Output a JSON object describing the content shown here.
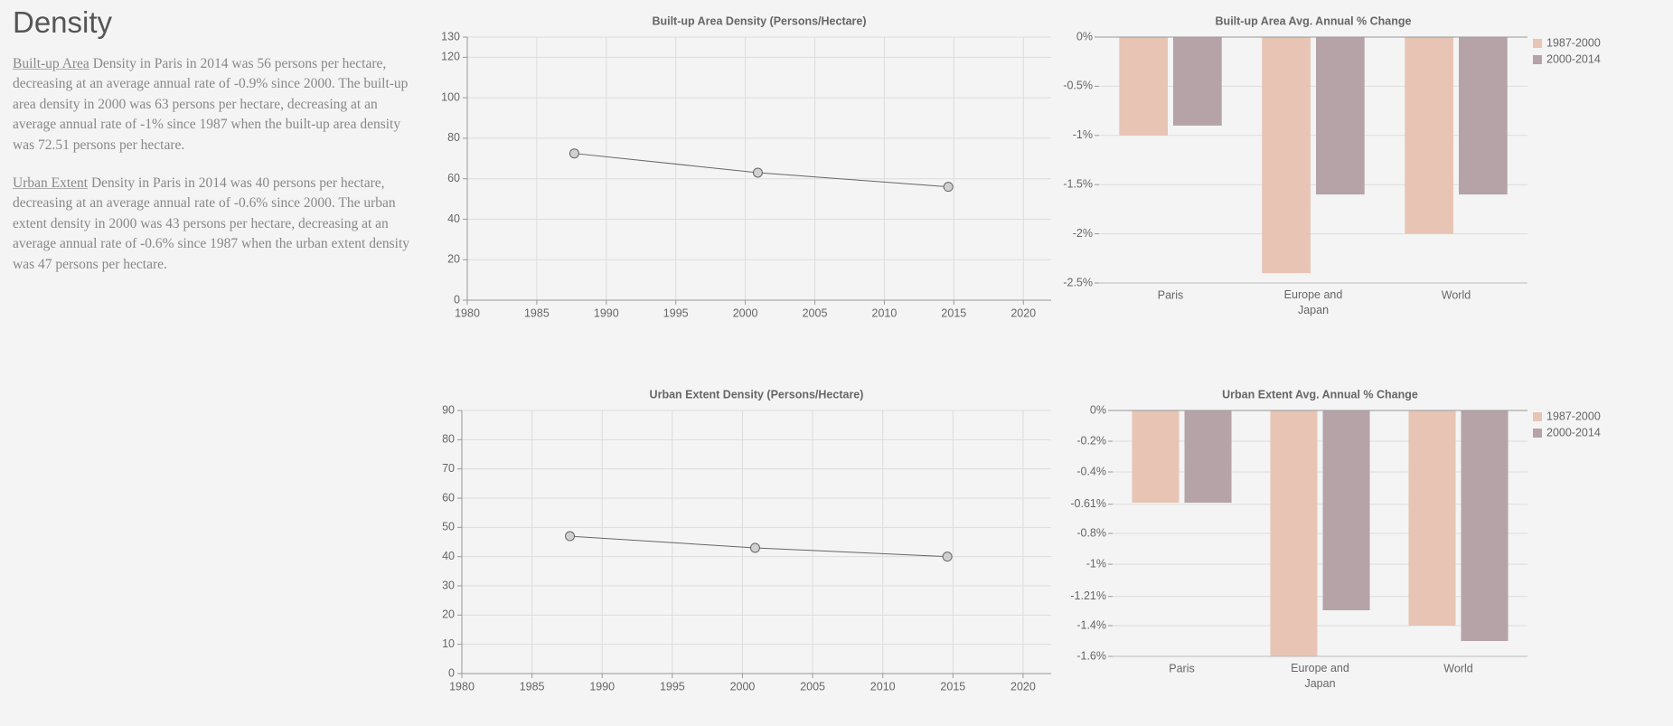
{
  "page": {
    "title": "Density",
    "paragraphs": [
      {
        "link": "Built-up Area",
        "text": " Density in Paris in 2014 was 56 persons per hectare, decreasing at an average annual rate of -0.9% since 2000. The built-up area density in 2000 was 63 persons per hectare, decreasing at an average annual rate of -1% since 1987 when the built-up area density was 72.51 persons per hectare."
      },
      {
        "link": "Urban Extent",
        "text": " Density in Paris in 2014 was 40 persons per hectare, decreasing at an average annual rate of -0.6% since 2000. The urban extent density in 2000 was 43 persons per hectare, decreasing at an average annual rate of -0.6% since 1987 when the urban extent density was 47 persons per hectare."
      }
    ]
  },
  "chart_data": [
    {
      "type": "line",
      "title": "Built-up Area Density (Persons/Hectare)",
      "x": [
        1987.7,
        2000.9,
        2014.6
      ],
      "values": [
        72.51,
        63,
        56
      ],
      "color": "#666666",
      "xlim": [
        1980,
        2022
      ],
      "xticks": [
        1980,
        1985,
        1990,
        1995,
        2000,
        2005,
        2010,
        2015,
        2020
      ],
      "ylim": [
        0,
        130
      ],
      "yticks": [
        0,
        20,
        40,
        60,
        80,
        100,
        120,
        130
      ],
      "grid": true
    },
    {
      "type": "bar",
      "title": "Built-up Area Avg. Annual % Change",
      "categories": [
        "Paris",
        "Europe and Japan",
        "World"
      ],
      "series": [
        {
          "name": "1987-2000",
          "color": "#e8c4b4",
          "values": [
            -1,
            -2.4,
            -2
          ]
        },
        {
          "name": "2000-2014",
          "color": "#b5a3a7",
          "values": [
            -0.9,
            -1.6,
            -1.6
          ]
        }
      ],
      "ylim": [
        -2.5,
        0
      ],
      "yticks": [
        {
          "value": 0,
          "label": "0%"
        },
        {
          "value": -0.5,
          "label": "-0.5%"
        },
        {
          "value": -1,
          "label": "-1%"
        },
        {
          "value": -1.5,
          "label": "-1.5%"
        },
        {
          "value": -2,
          "label": "-2%"
        },
        {
          "value": -2.5,
          "label": "-2.5%"
        }
      ],
      "grid": true,
      "legend": "right"
    },
    {
      "type": "line",
      "title": "Urban Extent Density (Persons/Hectare)",
      "x": [
        1987.7,
        2000.9,
        2014.6
      ],
      "values": [
        47,
        43,
        40
      ],
      "color": "#666666",
      "xlim": [
        1980,
        2022
      ],
      "xticks": [
        1980,
        1985,
        1990,
        1995,
        2000,
        2005,
        2010,
        2015,
        2020
      ],
      "ylim": [
        0,
        90
      ],
      "yticks": [
        0,
        10,
        20,
        30,
        40,
        50,
        60,
        70,
        80,
        90
      ],
      "grid": true
    },
    {
      "type": "bar",
      "title": "Urban Extent Avg. Annual % Change",
      "categories": [
        "Paris",
        "Europe and Japan",
        "World"
      ],
      "series": [
        {
          "name": "1987-2000",
          "color": "#e8c4b4",
          "values": [
            -0.6,
            -1.6,
            -1.4
          ]
        },
        {
          "name": "2000-2014",
          "color": "#b5a3a7",
          "values": [
            -0.6,
            -1.3,
            -1.5
          ]
        }
      ],
      "ylim": [
        -1.6,
        0
      ],
      "yticks": [
        {
          "value": 0,
          "label": "0%"
        },
        {
          "value": -0.2,
          "label": "-0.2%"
        },
        {
          "value": -0.4,
          "label": "-0.4%"
        },
        {
          "value": -0.61,
          "label": "-0.61%"
        },
        {
          "value": -0.8,
          "label": "-0.8%"
        },
        {
          "value": -1,
          "label": "-1%"
        },
        {
          "value": -1.21,
          "label": "-1.21%"
        },
        {
          "value": -1.4,
          "label": "-1.4%"
        },
        {
          "value": -1.6,
          "label": "-1.6%"
        }
      ],
      "grid": true,
      "legend": "right"
    }
  ]
}
